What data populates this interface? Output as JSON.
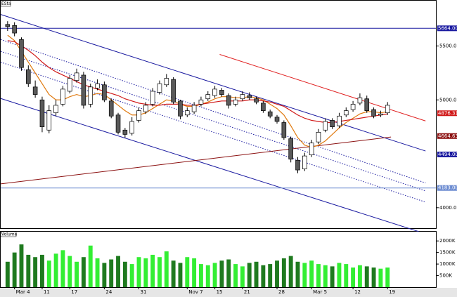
{
  "chart_data": {
    "type": "candlestick",
    "symbol": "ESta",
    "categories": [
      null,
      "Mar 4",
      null,
      null,
      null,
      "11",
      null,
      null,
      null,
      "17",
      null,
      null,
      null,
      null,
      "24",
      null,
      null,
      null,
      null,
      "31",
      null,
      null,
      null,
      null,
      null,
      null,
      "Nov 7",
      null,
      null,
      null,
      "15",
      null,
      null,
      null,
      "21",
      null,
      null,
      null,
      null,
      "28",
      null,
      null,
      null,
      null,
      "Mar 5",
      null,
      null,
      null,
      null,
      null,
      "12",
      null,
      null,
      null,
      null,
      "19"
    ],
    "open": [
      5700,
      5690,
      5560,
      5280,
      5120,
      5000,
      4720,
      4880,
      4960,
      5080,
      5180,
      5230,
      4960,
      5110,
      5140,
      4990,
      4860,
      4720,
      4690,
      4810,
      4890,
      4960,
      5070,
      5140,
      5190,
      4990,
      4860,
      4890,
      4960,
      5010,
      5040,
      5090,
      5040,
      4960,
      5010,
      5040,
      5010,
      4970,
      4890,
      4840,
      4790,
      4640,
      4440,
      4360,
      4490,
      4610,
      4720,
      4810,
      4760,
      4860,
      4910,
      4970,
      5010,
      4910,
      4860,
      4880
    ],
    "high": [
      5730,
      5720,
      5580,
      5320,
      5180,
      5030,
      4950,
      5000,
      5130,
      5230,
      5290,
      5260,
      5150,
      5190,
      5170,
      5010,
      4880,
      4740,
      4840,
      4930,
      4980,
      5110,
      5180,
      5240,
      5210,
      5000,
      4930,
      4980,
      5030,
      5080,
      5130,
      5110,
      5060,
      5030,
      5080,
      5070,
      5030,
      4990,
      4910,
      4860,
      4810,
      4660,
      4470,
      4510,
      4630,
      4730,
      4830,
      4830,
      4880,
      4930,
      4990,
      5060,
      5040,
      4930,
      4900,
      4980
    ],
    "low": [
      5640,
      5590,
      5270,
      5120,
      5020,
      4700,
      4690,
      4850,
      4940,
      5060,
      5160,
      4920,
      4930,
      5090,
      4980,
      4830,
      4680,
      4650,
      4670,
      4790,
      4870,
      4940,
      5050,
      5120,
      4960,
      4820,
      4840,
      4870,
      4940,
      4990,
      5020,
      5030,
      4920,
      4940,
      4990,
      5000,
      4960,
      4880,
      4830,
      4780,
      4630,
      4420,
      4320,
      4340,
      4470,
      4590,
      4700,
      4730,
      4740,
      4840,
      4890,
      4950,
      4880,
      4830,
      4840,
      4860
    ],
    "close": [
      5680,
      5620,
      5300,
      5150,
      5050,
      4750,
      4900,
      4950,
      5100,
      5200,
      5250,
      4950,
      5120,
      5150,
      5000,
      4850,
      4700,
      4680,
      4800,
      4900,
      4950,
      5080,
      5150,
      5200,
      4980,
      4850,
      4900,
      4950,
      5000,
      5050,
      5100,
      5050,
      4950,
      5000,
      5050,
      5020,
      4980,
      4900,
      4850,
      4800,
      4650,
      4450,
      4350,
      4480,
      4600,
      4700,
      4800,
      4750,
      4850,
      4900,
      4960,
      5020,
      4900,
      4850,
      4870,
      4950
    ],
    "up_color": "#ffffff",
    "down_color": "#5a5a5a",
    "xlim": [
      -1,
      62
    ],
    "ylim": [
      3810,
      5920
    ],
    "yticks": [
      {
        "value": 4000,
        "label": "4000.00"
      },
      {
        "value": 5000,
        "label": "5000.00"
      },
      {
        "value": 5500,
        "label": "5500.00"
      }
    ],
    "moving_averages": [
      {
        "color": "#e07a10",
        "values": [
          5600,
          5550,
          5450,
          5350,
          5250,
          5150,
          5050,
          5000,
          5000,
          5030,
          5050,
          5030,
          5040,
          5060,
          5050,
          5000,
          4950,
          4900,
          4860,
          4860,
          4880,
          4920,
          4960,
          5000,
          4990,
          4960,
          4940,
          4940,
          4960,
          4980,
          5010,
          5030,
          5030,
          5020,
          5020,
          5030,
          5020,
          5000,
          4960,
          4920,
          4860,
          4760,
          4650,
          4580,
          4560,
          4580,
          4620,
          4680,
          4740,
          4790,
          4830,
          4870,
          4890,
          4890,
          4880,
          4890
        ]
      },
      {
        "color": "#d01818",
        "values": [
          5550,
          5540,
          5500,
          5460,
          5410,
          5350,
          5300,
          5260,
          5230,
          5200,
          5170,
          5140,
          5120,
          5100,
          5080,
          5060,
          5040,
          5010,
          4990,
          4970,
          4960,
          4950,
          4950,
          4960,
          4960,
          4960,
          4950,
          4950,
          4960,
          4970,
          4980,
          4990,
          4990,
          4990,
          4990,
          5000,
          5000,
          4990,
          4980,
          4960,
          4940,
          4900,
          4860,
          4830,
          4810,
          4800,
          4790,
          4790,
          4800,
          4810,
          4820,
          4830,
          4840,
          4850,
          4860,
          4870
        ]
      }
    ],
    "lines": [
      {
        "color": "#1a1aa0",
        "style": "solid",
        "x": [
          -1,
          60.5
        ],
        "y": [
          5792,
          4526
        ]
      },
      {
        "color": "#1a1aa0",
        "style": "solid",
        "x": [
          -1,
          59.5
        ],
        "y": [
          5013,
          3779
        ]
      },
      {
        "color": "#1a1aa0",
        "style": "dotted",
        "x": [
          -1,
          60.5
        ],
        "y": [
          5560,
          4230
        ]
      },
      {
        "color": "#1a1aa0",
        "style": "dotted",
        "x": [
          -1,
          60.5
        ],
        "y": [
          5450,
          4156
        ]
      },
      {
        "color": "#1a1aa0",
        "style": "dotted",
        "x": [
          -1,
          60.5
        ],
        "y": [
          5350,
          4052
        ]
      },
      {
        "color": "#e02020",
        "style": "solid",
        "x": [
          30.7,
          60.5
        ],
        "y": [
          5422,
          4805
        ]
      },
      {
        "color": "#8b1010",
        "style": "solid",
        "x": [
          -1,
          55.5
        ],
        "y": [
          4221,
          4656
        ]
      },
      {
        "color": "#1a1aa0",
        "style": "solid",
        "x": [
          -1,
          62
        ],
        "y": [
          5664,
          5664
        ]
      },
      {
        "color": "#6a8ad0",
        "style": "solid",
        "x": [
          -1,
          62
        ],
        "y": [
          4183,
          4183
        ]
      }
    ],
    "price_tags": [
      {
        "value": 5664,
        "label": "5664.00",
        "color": "#1a1aa0"
      },
      {
        "value": 4876.31,
        "label": "4876.31",
        "color": "#d01818"
      },
      {
        "value": 4664.63,
        "label": "4664.63",
        "color": "#8b1010"
      },
      {
        "value": 4494,
        "label": "4494.00",
        "color": "#1a1aa0"
      },
      {
        "value": 4183,
        "label": "4183.00",
        "color": "#6a8ad0"
      }
    ],
    "volume": {
      "title": "Volume",
      "values": [
        1100,
        1500,
        1850,
        1400,
        1300,
        1400,
        1150,
        1450,
        1600,
        1350,
        1100,
        1300,
        1800,
        1250,
        1050,
        1200,
        1350,
        1100,
        1000,
        1300,
        1250,
        1400,
        1300,
        1550,
        1150,
        1050,
        1300,
        1250,
        1000,
        950,
        1050,
        1150,
        1200,
        1000,
        900,
        1050,
        1100,
        950,
        1000,
        1150,
        1250,
        1350,
        1100,
        1050,
        1150,
        1000,
        950,
        900,
        1050,
        1000,
        850,
        950,
        900,
        850,
        800,
        850
      ],
      "up_color": "#33ee33",
      "down_color": "#1f7a1f",
      "ylim": [
        0,
        2400
      ],
      "yticks": [
        {
          "value": 500,
          "label": "500K"
        },
        {
          "value": 1000,
          "label": "1000K"
        },
        {
          "value": 1500,
          "label": "1500K"
        },
        {
          "value": 2000,
          "label": "2000K"
        }
      ]
    }
  }
}
